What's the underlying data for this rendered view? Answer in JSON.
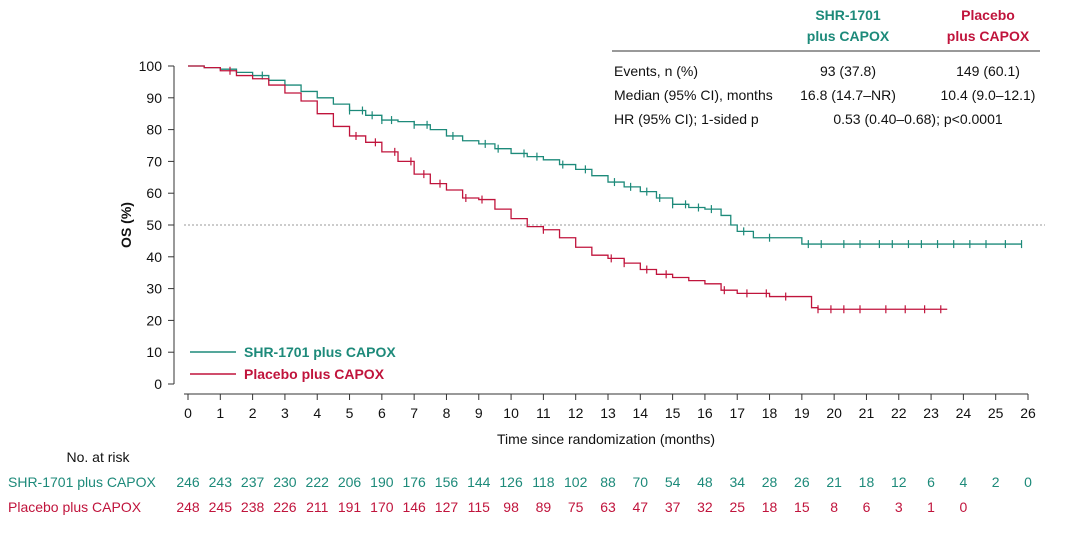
{
  "chart_data": {
    "type": "line",
    "title": "",
    "xlabel": "Time since randomization (months)",
    "ylabel": "OS (%)",
    "xlim": [
      0,
      26
    ],
    "ylim": [
      0,
      100
    ],
    "xticks": [
      "0",
      "1",
      "2",
      "3",
      "4",
      "5",
      "6",
      "7",
      "8",
      "9",
      "10",
      "11",
      "12",
      "13",
      "14",
      "15",
      "16",
      "17",
      "18",
      "19",
      "20",
      "21",
      "22",
      "23",
      "24",
      "25",
      "26"
    ],
    "yticks": [
      "0",
      "10",
      "20",
      "30",
      "40",
      "50",
      "60",
      "70",
      "80",
      "90",
      "100"
    ],
    "reference_line_y": 50,
    "grid": false,
    "legend_position": "bottom-left",
    "colors": {
      "shr": "#1d8a7a",
      "placebo": "#c0143c"
    },
    "series": [
      {
        "name": "SHR-1701 plus CAPOX",
        "color": "#1d8a7a",
        "x": [
          0,
          0.5,
          1,
          1.5,
          2,
          2.5,
          3,
          3.5,
          4,
          4.5,
          5,
          5.5,
          6,
          6.5,
          7,
          7.5,
          8,
          8.5,
          9,
          9.5,
          10,
          10.5,
          11,
          11.5,
          12,
          12.5,
          13,
          13.5,
          14,
          14.5,
          15,
          15.5,
          16,
          16.5,
          16.8,
          17,
          17.3,
          17.5,
          18,
          19,
          20,
          21,
          22,
          23,
          24,
          25,
          25.8
        ],
        "y": [
          100,
          99.5,
          99,
          98,
          97,
          95.5,
          94,
          92,
          90,
          88,
          86,
          84.5,
          83,
          82.5,
          81.5,
          80,
          78,
          76.5,
          75.5,
          74,
          72.5,
          71.5,
          70.5,
          69,
          67.5,
          65.5,
          63.5,
          62,
          60.5,
          58.5,
          56.5,
          55.5,
          55,
          53,
          50,
          48,
          48,
          46,
          46,
          44,
          44,
          44,
          44,
          44,
          44,
          44,
          44
        ],
        "censor_x": [
          2.3,
          5,
          5.4,
          5.7,
          6,
          6.3,
          7,
          7.4,
          8.2,
          9.2,
          9.6,
          10.4,
          10.8,
          11.6,
          12.3,
          13.2,
          13.7,
          14.2,
          14.6,
          15,
          15.4,
          15.8,
          16.2,
          17.2,
          18,
          19.2,
          19.6,
          20.3,
          20.8,
          21.4,
          21.8,
          22.3,
          22.7,
          23.2,
          23.7,
          24.2,
          24.7,
          25.3,
          25.8
        ]
      },
      {
        "name": "Placebo plus CAPOX",
        "color": "#c0143c",
        "x": [
          0,
          0.5,
          1,
          1.5,
          2,
          2.5,
          3,
          3.5,
          4,
          4.5,
          5,
          5.5,
          6,
          6.5,
          7,
          7.5,
          8,
          8.5,
          9,
          9.5,
          10,
          10.5,
          11,
          11.5,
          12,
          12.5,
          13,
          13.5,
          14,
          14.5,
          15,
          15.5,
          16,
          16.5,
          17,
          18,
          19,
          19.3,
          19.5,
          20,
          21,
          22,
          23,
          23.5
        ],
        "y": [
          100,
          99.5,
          98.5,
          97,
          96,
          94,
          91.5,
          89,
          85,
          81,
          78,
          76,
          73,
          70,
          66,
          63,
          61,
          58.5,
          58,
          55,
          52,
          49.5,
          48.5,
          46,
          43,
          40.5,
          39.5,
          38,
          36,
          34.5,
          33.5,
          32.5,
          31.5,
          29.5,
          28.5,
          27.5,
          27.5,
          24,
          23.5,
          23.5,
          23.5,
          23.5,
          23.5,
          23.5
        ],
        "censor_x": [
          1.3,
          5.2,
          5.8,
          6.4,
          6.9,
          7.3,
          7.8,
          8.6,
          9.1,
          11,
          13.1,
          13.5,
          14.2,
          14.8,
          16.6,
          17.3,
          17.9,
          18.5,
          19.5,
          19.9,
          20.3,
          20.8,
          21.6,
          22.2,
          22.8,
          23.3
        ]
      }
    ],
    "summary_table": {
      "columns": [
        "SHR-1701\nplus CAPOX",
        "Placebo\nplus CAPOX"
      ],
      "col1_lines": [
        "SHR-1701",
        "plus CAPOX"
      ],
      "col2_lines": [
        "Placebo",
        "plus CAPOX"
      ],
      "rows": [
        {
          "label": "Events, n (%)",
          "v1": "93 (37.8)",
          "v2": "149 (60.1)"
        },
        {
          "label": "Median (95% CI), months",
          "v1": "16.8 (14.7–NR)",
          "v2": "10.4 (9.0–12.1)"
        },
        {
          "label": "HR (95% CI); 1-sided p",
          "combined": "0.53 (0.40–0.68); p<0.0001"
        }
      ]
    },
    "number_at_risk": {
      "title": "No. at risk",
      "rows": [
        {
          "label": "SHR-1701 plus CAPOX",
          "values": [
            "246",
            "243",
            "237",
            "230",
            "222",
            "206",
            "190",
            "176",
            "156",
            "144",
            "126",
            "118",
            "102",
            "88",
            "70",
            "54",
            "48",
            "34",
            "28",
            "26",
            "21",
            "18",
            "12",
            "6",
            "4",
            "2",
            "0"
          ]
        },
        {
          "label": "Placebo plus CAPOX",
          "values": [
            "248",
            "245",
            "238",
            "226",
            "211",
            "191",
            "170",
            "146",
            "127",
            "115",
            "98",
            "89",
            "75",
            "63",
            "47",
            "37",
            "32",
            "25",
            "18",
            "15",
            "8",
            "6",
            "3",
            "1",
            "0"
          ]
        }
      ]
    }
  }
}
